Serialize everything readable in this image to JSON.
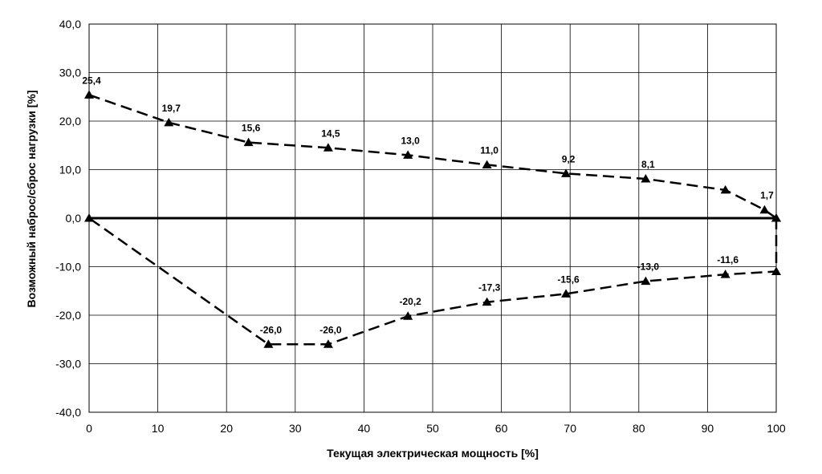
{
  "chart_data": {
    "type": "line",
    "title": "",
    "xlabel": "Текущая электрическая мощность [%]",
    "ylabel": "Возможный наброс/сброс нагрузки [%]",
    "xlim": [
      0,
      100
    ],
    "ylim": [
      -40,
      40
    ],
    "x_ticks": [
      0,
      10,
      20,
      30,
      40,
      50,
      60,
      70,
      80,
      90,
      100
    ],
    "y_ticks": [
      40,
      30,
      20,
      10,
      0,
      -10,
      -20,
      -30,
      -40
    ],
    "x_tick_labels": [
      "0",
      "10",
      "20",
      "30",
      "40",
      "50",
      "60",
      "70",
      "80",
      "90",
      "100"
    ],
    "y_tick_labels": [
      "40,0",
      "30,0",
      "20,0",
      "10,0",
      "0,0",
      "-10,0",
      "-20,0",
      "-30,0",
      "-40,0"
    ],
    "grid": true,
    "legend": "none",
    "line_color": "#000000",
    "line_style": "dashed",
    "marker": "triangle",
    "series": [
      {
        "x": [
          0,
          11.6,
          23.2,
          34.8,
          46.4,
          57.9,
          69.4,
          81.0,
          92.6,
          98.3,
          100
        ],
        "y": [
          25.4,
          19.7,
          15.6,
          14.5,
          13.0,
          11.0,
          9.2,
          8.1,
          5.8,
          1.7,
          0.0
        ],
        "labels": [
          "25,4",
          "19,7",
          "15,6",
          "14,5",
          "13,0",
          "11,0",
          "9,2",
          "8,1",
          "",
          "1,7",
          ""
        ]
      },
      {
        "x": [
          100,
          100,
          92.6,
          81.0,
          69.4,
          57.9,
          46.4,
          34.8,
          26.1,
          0
        ],
        "y": [
          0.0,
          -11.0,
          -11.6,
          -13.0,
          -15.6,
          -17.3,
          -20.2,
          -26.0,
          -26.0,
          0.0
        ],
        "labels": [
          "",
          "",
          "-11,6",
          "-13,0",
          "-15,6",
          "-17,3",
          "-20,2",
          "-26,0",
          "-26,0",
          ""
        ]
      }
    ]
  }
}
